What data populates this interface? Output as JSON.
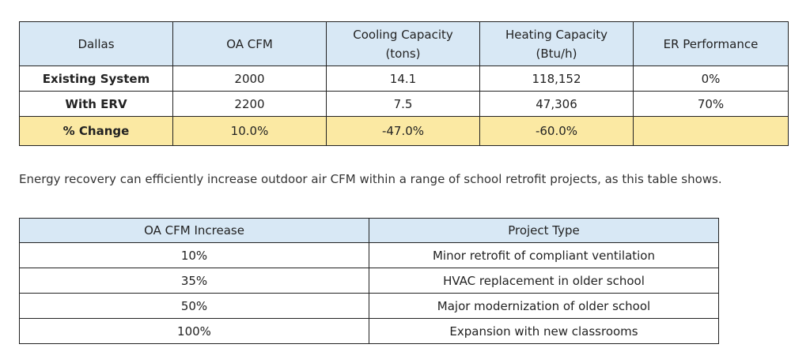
{
  "table_one": {
    "headers": [
      "Dallas",
      "OA CFM",
      "Cooling Capacity\n(tons)",
      "Heating Capacity\n(Btu/h)",
      "ER Performance"
    ],
    "rows": [
      [
        "Existing System",
        "2000",
        "14.1",
        "118,152",
        "0%"
      ],
      [
        "With ERV",
        "2200",
        "7.5",
        "47,306",
        "70%"
      ],
      [
        "% Change",
        "10.0%",
        "-47.0%",
        "-60.0%",
        ""
      ]
    ],
    "highlight_color": "#fbe9a3",
    "header_color": "#d8e8f5"
  },
  "caption": "Energy recovery can efficiently increase outdoor air CFM within a range of school retrofit projects, as this table shows.",
  "table_two": {
    "headers": [
      "OA CFM Increase",
      "Project Type"
    ],
    "rows": [
      [
        "10%",
        "Minor retrofit of compliant ventilation"
      ],
      [
        "35%",
        "HVAC replacement in older school"
      ],
      [
        "50%",
        "Major modernization of older school"
      ],
      [
        "100%",
        "Expansion with new classrooms"
      ]
    ],
    "header_color": "#d8e8f5"
  }
}
